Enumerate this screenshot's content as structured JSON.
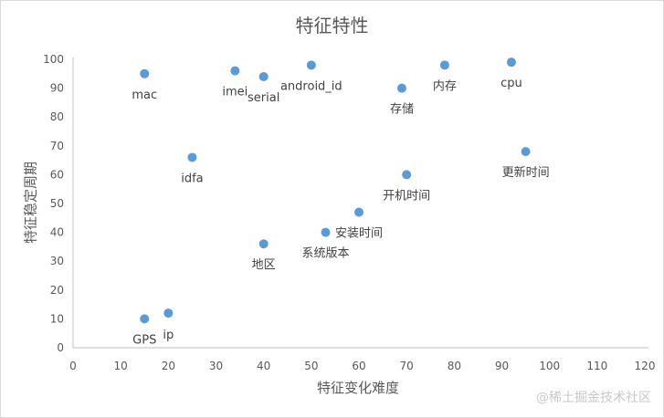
{
  "chart_data": {
    "type": "scatter",
    "title": "特征特性",
    "xlabel": "特征变化难度",
    "ylabel": "特征稳定周期",
    "xlim": [
      0,
      120
    ],
    "ylim": [
      0,
      100
    ],
    "xticks": [
      0,
      10,
      20,
      30,
      40,
      50,
      60,
      70,
      80,
      90,
      100,
      110,
      120
    ],
    "yticks": [
      0,
      10,
      20,
      30,
      40,
      50,
      60,
      70,
      80,
      90,
      100
    ],
    "grid": false,
    "legend": null,
    "point_color": "#5b9bd5",
    "points": [
      {
        "label": "mac",
        "x": 15,
        "y": 95,
        "label_pos": "below"
      },
      {
        "label": "imei",
        "x": 34,
        "y": 96,
        "label_pos": "below"
      },
      {
        "label": "serial",
        "x": 40,
        "y": 94,
        "label_pos": "below"
      },
      {
        "label": "android_id",
        "x": 50,
        "y": 98,
        "label_pos": "below"
      },
      {
        "label": "存储",
        "x": 69,
        "y": 90,
        "label_pos": "below"
      },
      {
        "label": "内存",
        "x": 78,
        "y": 98,
        "label_pos": "below"
      },
      {
        "label": "cpu",
        "x": 92,
        "y": 99,
        "label_pos": "below"
      },
      {
        "label": "idfa",
        "x": 25,
        "y": 66,
        "label_pos": "below"
      },
      {
        "label": "更新时间",
        "x": 95,
        "y": 68,
        "label_pos": "below"
      },
      {
        "label": "开机时间",
        "x": 70,
        "y": 60,
        "label_pos": "below"
      },
      {
        "label": "安装时间",
        "x": 60,
        "y": 47,
        "label_pos": "below"
      },
      {
        "label": "系统版本",
        "x": 53,
        "y": 40,
        "label_pos": "below"
      },
      {
        "label": "地区",
        "x": 40,
        "y": 36,
        "label_pos": "below"
      },
      {
        "label": "GPS",
        "x": 15,
        "y": 10,
        "label_pos": "below"
      },
      {
        "label": "ip",
        "x": 20,
        "y": 12,
        "label_pos": "above-right"
      }
    ]
  },
  "watermark": "@稀土掘金技术社区"
}
